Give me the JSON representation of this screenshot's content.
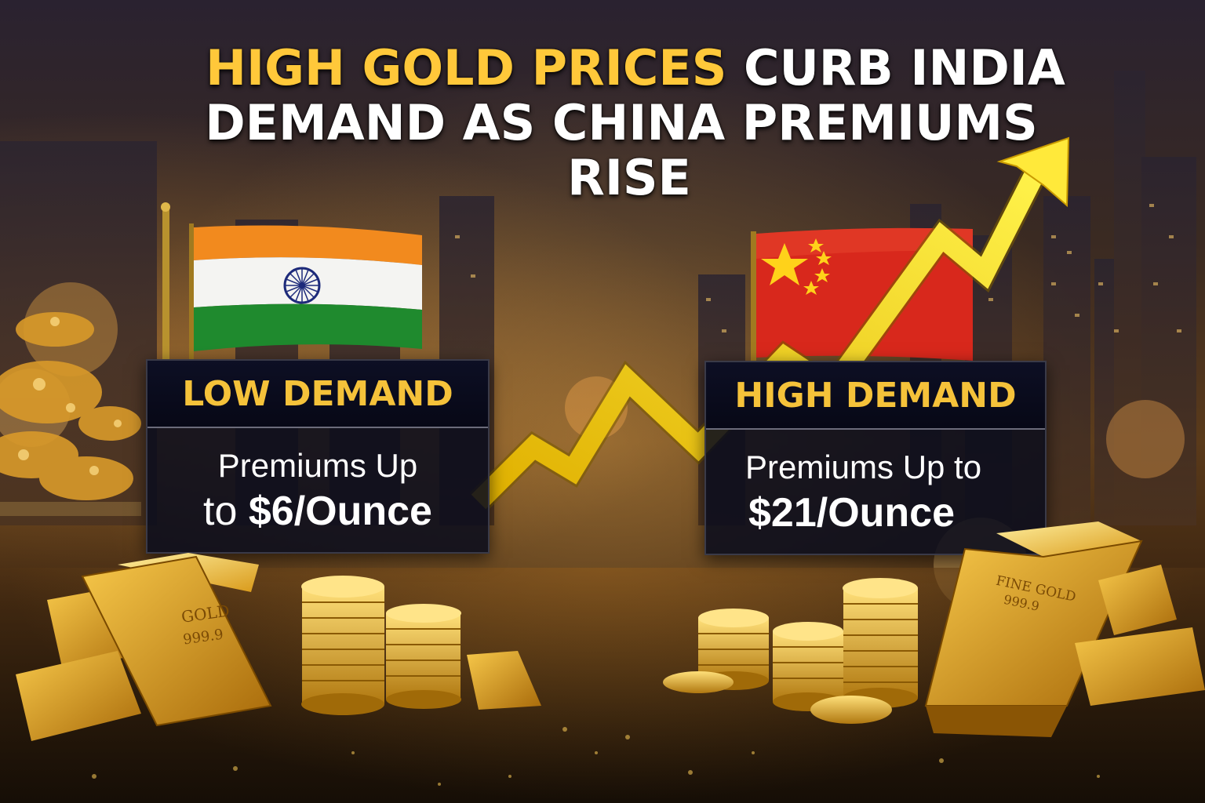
{
  "title": {
    "highlight": "HIGH GOLD PRICES",
    "rest_line1": "CURB INDIA",
    "line2": "DEMAND AS CHINA PREMIUMS",
    "line3": "RISE"
  },
  "india_panel": {
    "heading": "LOW DEMAND",
    "line1": "Premiums Up",
    "line2_prefix": "to",
    "line2_value": "$6/Ounce"
  },
  "china_panel": {
    "heading": "HIGH DEMAND",
    "line1": "Premiums Up to",
    "line2_value": "$21/Ounce"
  },
  "gold_bar_left": {
    "line1": "GOLD",
    "line2": "999.9"
  },
  "gold_bar_right": {
    "line1": "FINE GOLD",
    "line2": "999.9"
  },
  "colors": {
    "title_gold": "#ffc83a",
    "heading_gold": "#f5c23a",
    "panel_bg": "#0a0c1c",
    "arrow": "#f6d316",
    "india_saffron": "#f28a1e",
    "india_green": "#1f8a2e",
    "india_chakra": "#1d2a7a",
    "china_red": "#d8281c",
    "china_star": "#ffd21a"
  },
  "icons": [
    "india-flag-icon",
    "china-flag-icon",
    "trend-arrow-icon",
    "gold-bar-icon",
    "gold-coin-stack-icon"
  ]
}
